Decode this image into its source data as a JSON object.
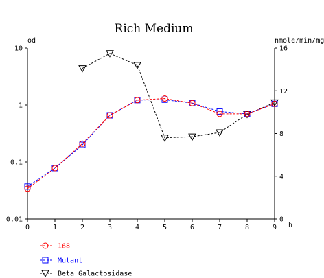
{
  "chart_data": {
    "type": "line",
    "title": "Rich Medium",
    "left_axis": {
      "unit": "od",
      "scale": "log",
      "ylim": [
        0.01,
        10
      ],
      "ticks": [
        "10",
        "1",
        "0.1",
        "0.01"
      ]
    },
    "right_axis": {
      "unit": "nmole/min/mg",
      "scale": "linear",
      "ylim": [
        0,
        16
      ],
      "ticks": [
        "16",
        "12",
        "8",
        "4",
        "0"
      ]
    },
    "x_axis": {
      "unit": "h",
      "xlim": [
        0,
        9
      ],
      "ticks": [
        "0",
        "1",
        "2",
        "3",
        "4",
        "5",
        "6",
        "7",
        "8",
        "9"
      ]
    },
    "grid": false,
    "legend_position": "bottom-left",
    "series": [
      {
        "name": "168",
        "axis": "left",
        "color": "#ff0000",
        "marker": "circle",
        "line": "dashed",
        "x": [
          0,
          1,
          2,
          3,
          4,
          5,
          6,
          7,
          8,
          9
        ],
        "values": [
          0.034,
          0.078,
          0.21,
          0.66,
          1.22,
          1.3,
          1.08,
          0.7,
          0.7,
          1.05
        ]
      },
      {
        "name": "Mutant",
        "axis": "left",
        "color": "#0000ff",
        "marker": "square",
        "line": "dashed",
        "x": [
          0,
          1,
          2,
          3,
          4,
          5,
          6,
          7,
          8,
          9
        ],
        "values": [
          0.037,
          0.078,
          0.2,
          0.66,
          1.22,
          1.24,
          1.08,
          0.77,
          0.7,
          1.05
        ]
      },
      {
        "name": "Beta Galactosidase",
        "axis": "right",
        "color": "#000000",
        "marker": "triangle-down",
        "line": "dashed",
        "x": [
          2,
          3,
          4,
          5,
          6,
          7,
          8,
          9
        ],
        "values": [
          14.1,
          15.5,
          14.4,
          7.6,
          7.7,
          8.1,
          9.8,
          10.9
        ]
      }
    ]
  }
}
